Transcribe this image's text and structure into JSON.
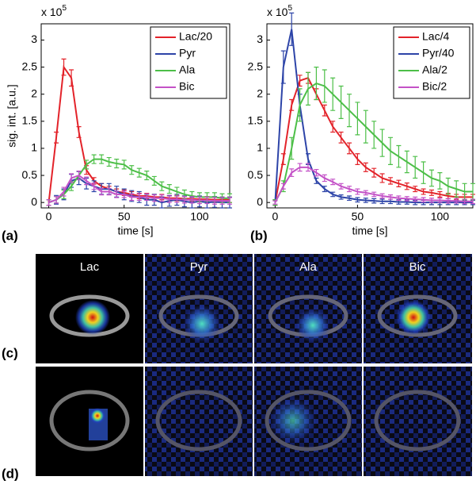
{
  "chart_data": [
    {
      "type": "line",
      "ylabel": "sig. int. [a.u.]",
      "xlabel": "time [s]",
      "y_multiplier": {
        "base": "x 10",
        "exponent": "5"
      },
      "x": [
        0,
        5,
        10,
        15,
        20,
        25,
        30,
        35,
        40,
        45,
        50,
        55,
        60,
        65,
        70,
        75,
        80,
        85,
        90,
        95,
        100,
        105,
        110,
        115,
        120
      ],
      "xlim": [
        -5,
        120
      ],
      "xticks": [
        0,
        50,
        100
      ],
      "ylim": [
        -0.1,
        3.3
      ],
      "yticks": [
        0,
        0.5,
        1,
        1.5,
        2,
        2.5,
        3
      ],
      "legend": "northeast",
      "series": [
        {
          "name": "Lac/20",
          "color": "#e3232a",
          "values": [
            0,
            1.2,
            2.5,
            2.3,
            1.3,
            0.6,
            0.4,
            0.3,
            0.25,
            0.2,
            0.18,
            0.15,
            0.12,
            0.12,
            0.1,
            0.1,
            0.08,
            0.08,
            0.07,
            0.07,
            0.06,
            0.06,
            0.05,
            0.05,
            0.05
          ],
          "errors": [
            0.05,
            0.1,
            0.15,
            0.15,
            0.1,
            0.08,
            0.06,
            0.05,
            0.05,
            0.05,
            0.05,
            0.05,
            0.05,
            0.05,
            0.05,
            0.05,
            0.05,
            0.05,
            0.05,
            0.05,
            0.05,
            0.05,
            0.05,
            0.05,
            0.05
          ]
        },
        {
          "name": "Pyr",
          "color": "#2d44a8",
          "values": [
            0,
            0.05,
            0.15,
            0.4,
            0.45,
            0.35,
            0.3,
            0.25,
            0.25,
            0.2,
            0.15,
            0.12,
            0.1,
            0.05,
            0.05,
            0,
            0.03,
            0.05,
            0.02,
            0,
            0.02,
            0,
            0.01,
            0,
            0
          ],
          "errors": [
            0.05,
            0.08,
            0.1,
            0.12,
            0.12,
            0.1,
            0.1,
            0.1,
            0.1,
            0.1,
            0.1,
            0.1,
            0.1,
            0.1,
            0.1,
            0.1,
            0.1,
            0.1,
            0.1,
            0.1,
            0.1,
            0.1,
            0.1,
            0.1,
            0.1
          ]
        },
        {
          "name": "Ala",
          "color": "#4dbf48",
          "values": [
            0,
            0.05,
            0.15,
            0.3,
            0.5,
            0.7,
            0.8,
            0.8,
            0.75,
            0.72,
            0.7,
            0.6,
            0.55,
            0.5,
            0.4,
            0.3,
            0.25,
            0.2,
            0.15,
            0.12,
            0.1,
            0.1,
            0.1,
            0.08,
            0.08
          ],
          "errors": [
            0.05,
            0.06,
            0.08,
            0.08,
            0.08,
            0.08,
            0.08,
            0.08,
            0.08,
            0.08,
            0.08,
            0.08,
            0.08,
            0.08,
            0.08,
            0.08,
            0.08,
            0.08,
            0.08,
            0.08,
            0.08,
            0.08,
            0.08,
            0.08,
            0.08
          ]
        },
        {
          "name": "Bic",
          "color": "#c452c7",
          "values": [
            0,
            0.05,
            0.2,
            0.45,
            0.5,
            0.4,
            0.3,
            0.2,
            0.2,
            0.15,
            0.15,
            0.1,
            0.1,
            0.1,
            0.08,
            0.08,
            0.06,
            0.06,
            0.05,
            0.05,
            0.04,
            0.04,
            0.03,
            0.03,
            0.03
          ],
          "errors": [
            0.05,
            0.06,
            0.08,
            0.08,
            0.08,
            0.07,
            0.06,
            0.06,
            0.06,
            0.06,
            0.06,
            0.06,
            0.06,
            0.06,
            0.06,
            0.06,
            0.06,
            0.06,
            0.06,
            0.06,
            0.06,
            0.06,
            0.06,
            0.06,
            0.06
          ]
        }
      ]
    },
    {
      "type": "line",
      "ylabel": null,
      "xlabel": "time [s]",
      "y_multiplier": {
        "base": "x 10",
        "exponent": "5"
      },
      "x": [
        0,
        5,
        10,
        15,
        20,
        25,
        30,
        35,
        40,
        45,
        50,
        55,
        60,
        65,
        70,
        75,
        80,
        85,
        90,
        95,
        100,
        105,
        110,
        115,
        120
      ],
      "xlim": [
        -5,
        120
      ],
      "xticks": [
        0,
        50,
        100
      ],
      "ylim": [
        -0.1,
        3.3
      ],
      "yticks": [
        0,
        0.5,
        1,
        1.5,
        2,
        2.5,
        3
      ],
      "legend": "northeast",
      "series": [
        {
          "name": "Lac/4",
          "color": "#e3232a",
          "values": [
            0,
            0.8,
            1.8,
            2.25,
            2.3,
            2.0,
            1.7,
            1.4,
            1.2,
            1.0,
            0.8,
            0.65,
            0.55,
            0.45,
            0.4,
            0.35,
            0.3,
            0.25,
            0.2,
            0.18,
            0.15,
            0.12,
            0.1,
            0.1,
            0.1
          ],
          "errors": [
            0.05,
            0.1,
            0.1,
            0.1,
            0.1,
            0.1,
            0.1,
            0.1,
            0.1,
            0.1,
            0.1,
            0.08,
            0.08,
            0.08,
            0.06,
            0.06,
            0.06,
            0.05,
            0.05,
            0.05,
            0.05,
            0.05,
            0.05,
            0.05,
            0.05
          ]
        },
        {
          "name": "Pyr/40",
          "color": "#2d44a8",
          "values": [
            0,
            2.5,
            3.2,
            1.8,
            0.8,
            0.4,
            0.25,
            0.15,
            0.1,
            0.08,
            0.05,
            0.04,
            0.03,
            0.02,
            0.02,
            0.01,
            0.01,
            0,
            0,
            0,
            0,
            0,
            0,
            0,
            0
          ],
          "errors": [
            0.05,
            0.3,
            0.3,
            0.2,
            0.1,
            0.05,
            0.05,
            0.04,
            0.04,
            0.04,
            0.04,
            0.04,
            0.04,
            0.04,
            0.04,
            0.04,
            0.04,
            0.04,
            0.04,
            0.04,
            0.04,
            0.04,
            0.04,
            0.04,
            0.04
          ]
        },
        {
          "name": "Ala/2",
          "color": "#4dbf48",
          "values": [
            0,
            0.3,
            1.0,
            1.8,
            2.1,
            2.2,
            2.15,
            2.0,
            1.85,
            1.7,
            1.55,
            1.4,
            1.25,
            1.1,
            0.95,
            0.85,
            0.75,
            0.65,
            0.55,
            0.45,
            0.4,
            0.3,
            0.25,
            0.2,
            0.2
          ],
          "errors": [
            0.05,
            0.1,
            0.2,
            0.3,
            0.3,
            0.3,
            0.3,
            0.3,
            0.3,
            0.3,
            0.3,
            0.3,
            0.25,
            0.25,
            0.25,
            0.2,
            0.2,
            0.2,
            0.2,
            0.15,
            0.15,
            0.15,
            0.15,
            0.15,
            0.15
          ]
        },
        {
          "name": "Bic/2",
          "color": "#c452c7",
          "values": [
            0,
            0.3,
            0.55,
            0.65,
            0.65,
            0.55,
            0.45,
            0.38,
            0.3,
            0.25,
            0.2,
            0.18,
            0.15,
            0.12,
            0.1,
            0.08,
            0.07,
            0.06,
            0.05,
            0.04,
            0.04,
            0.03,
            0.03,
            0.02,
            0.02
          ],
          "errors": [
            0.03,
            0.05,
            0.07,
            0.07,
            0.07,
            0.06,
            0.06,
            0.05,
            0.05,
            0.05,
            0.05,
            0.04,
            0.04,
            0.04,
            0.04,
            0.04,
            0.04,
            0.04,
            0.04,
            0.04,
            0.04,
            0.04,
            0.04,
            0.04,
            0.04
          ]
        }
      ]
    }
  ],
  "panel_labels": [
    "(a)",
    "(b)",
    "(c)",
    "(d)"
  ],
  "image_columns": [
    "Lac",
    "Pyr",
    "Ala",
    "Bic"
  ]
}
